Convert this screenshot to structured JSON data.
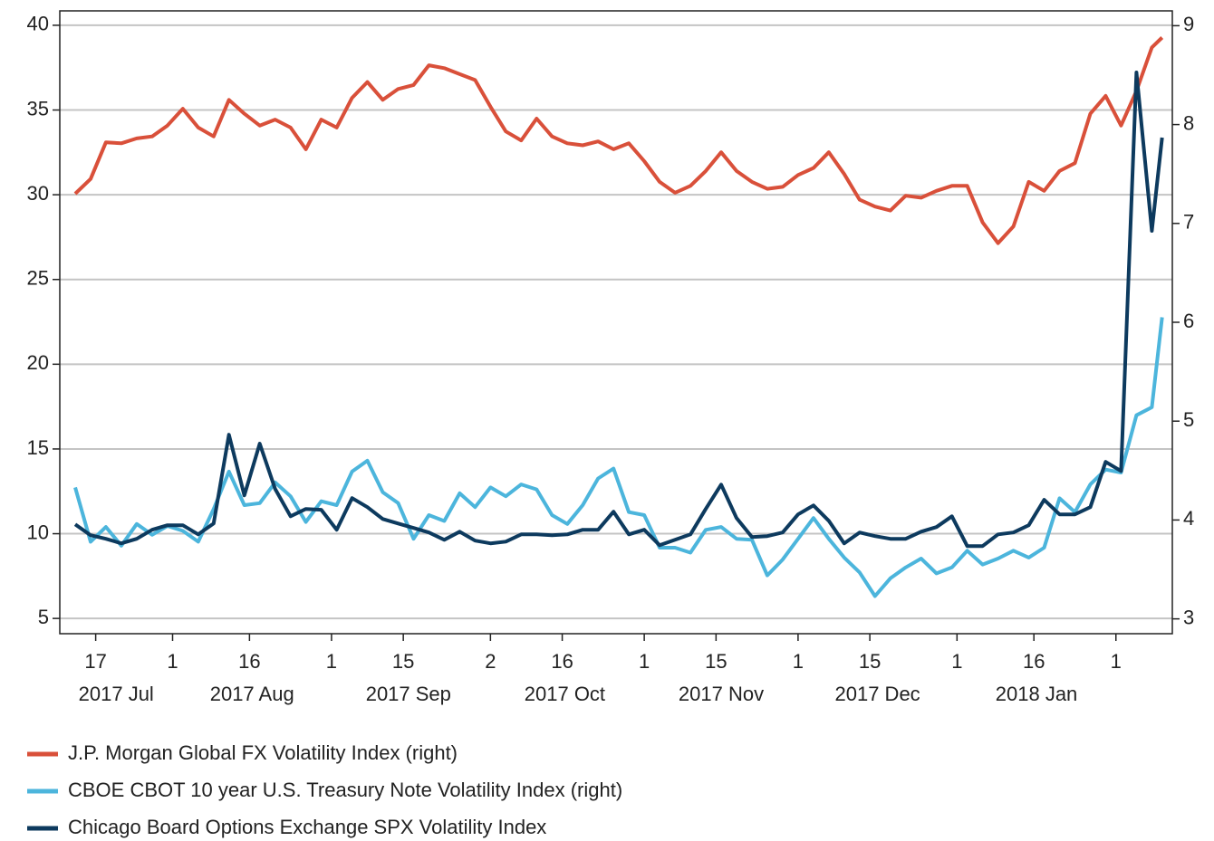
{
  "chart_data": {
    "type": "line",
    "x": [
      "2017-07-13",
      "2017-07-16",
      "2017-07-19",
      "2017-07-22",
      "2017-07-25",
      "2017-07-28",
      "2017-07-31",
      "2017-08-03",
      "2017-08-06",
      "2017-08-09",
      "2017-08-12",
      "2017-08-15",
      "2017-08-18",
      "2017-08-21",
      "2017-08-24",
      "2017-08-27",
      "2017-08-30",
      "2017-09-02",
      "2017-09-05",
      "2017-09-08",
      "2017-09-11",
      "2017-09-14",
      "2017-09-17",
      "2017-09-20",
      "2017-09-23",
      "2017-09-26",
      "2017-09-29",
      "2017-10-02",
      "2017-10-05",
      "2017-10-08",
      "2017-10-11",
      "2017-10-14",
      "2017-10-17",
      "2017-10-20",
      "2017-10-23",
      "2017-10-26",
      "2017-10-29",
      "2017-11-01",
      "2017-11-04",
      "2017-11-07",
      "2017-11-10",
      "2017-11-13",
      "2017-11-16",
      "2017-11-19",
      "2017-11-22",
      "2017-11-25",
      "2017-11-28",
      "2017-12-01",
      "2017-12-04",
      "2017-12-07",
      "2017-12-10",
      "2017-12-13",
      "2017-12-16",
      "2017-12-19",
      "2017-12-22",
      "2017-12-25",
      "2017-12-28",
      "2017-12-31",
      "2018-01-03",
      "2018-01-06",
      "2018-01-09",
      "2018-01-12",
      "2018-01-15",
      "2018-01-18",
      "2018-01-21",
      "2018-01-24",
      "2018-01-27",
      "2018-01-30",
      "2018-02-02",
      "2018-02-05",
      "2018-02-08",
      "2018-02-10"
    ],
    "series": [
      {
        "name": "J.P. Morgan Global FX Volatility Index (right)",
        "color": "#d9503a",
        "axis": "y2",
        "values": [
          7.3,
          7.45,
          7.82,
          7.81,
          7.86,
          7.88,
          7.99,
          8.16,
          7.97,
          7.88,
          8.25,
          8.11,
          7.99,
          8.05,
          7.97,
          7.75,
          8.05,
          7.97,
          8.27,
          8.43,
          8.25,
          8.36,
          8.4,
          8.6,
          8.57,
          8.51,
          8.45,
          8.18,
          7.93,
          7.84,
          8.06,
          7.88,
          7.81,
          7.79,
          7.83,
          7.75,
          7.81,
          7.63,
          7.42,
          7.31,
          7.38,
          7.53,
          7.72,
          7.53,
          7.42,
          7.35,
          7.37,
          7.49,
          7.56,
          7.72,
          7.5,
          7.24,
          7.17,
          7.13,
          7.28,
          7.26,
          7.33,
          7.38,
          7.38,
          7.01,
          6.8,
          6.97,
          7.42,
          7.33,
          7.53,
          7.61,
          8.11,
          8.29,
          7.99,
          8.34,
          8.78,
          8.88
        ]
      },
      {
        "name": "CBOE CBOT 10 year U.S. Treasury Note Volatility Index (right)",
        "color": "#4cb5dc",
        "axis": "y2",
        "values": [
          4.33,
          3.78,
          3.93,
          3.74,
          3.96,
          3.85,
          3.94,
          3.89,
          3.78,
          4.11,
          4.49,
          4.15,
          4.17,
          4.38,
          4.24,
          3.98,
          4.19,
          4.15,
          4.49,
          4.6,
          4.28,
          4.17,
          3.81,
          4.05,
          3.99,
          4.27,
          4.13,
          4.33,
          4.24,
          4.36,
          4.31,
          4.05,
          3.96,
          4.15,
          4.42,
          4.52,
          4.08,
          4.05,
          3.72,
          3.72,
          3.67,
          3.9,
          3.93,
          3.81,
          3.8,
          3.44,
          3.6,
          3.81,
          4.02,
          3.81,
          3.62,
          3.47,
          3.23,
          3.41,
          3.52,
          3.61,
          3.46,
          3.52,
          3.69,
          3.55,
          3.61,
          3.69,
          3.62,
          3.72,
          4.22,
          4.08,
          4.36,
          4.51,
          4.48,
          5.06,
          5.14,
          6.05
        ]
      },
      {
        "name": "Chicago Board Options Exchange SPX Volatility Index",
        "color": "#0d3a5e",
        "values": [
          10.55,
          9.91,
          9.7,
          9.43,
          9.7,
          10.23,
          10.5,
          10.5,
          9.96,
          10.6,
          15.84,
          12.26,
          15.31,
          12.64,
          11.03,
          11.46,
          11.41,
          10.23,
          12.1,
          11.57,
          10.87,
          10.6,
          10.34,
          10.07,
          9.64,
          10.12,
          9.59,
          9.43,
          9.53,
          9.96,
          9.96,
          9.91,
          9.96,
          10.23,
          10.23,
          11.3,
          9.96,
          10.23,
          9.32,
          9.64,
          9.96,
          11.46,
          12.9,
          10.92,
          9.8,
          9.86,
          10.07,
          11.14,
          11.67,
          10.76,
          9.43,
          10.07,
          9.86,
          9.7,
          9.7,
          10.12,
          10.39,
          11.03,
          9.27,
          9.27,
          9.96,
          10.07,
          10.5,
          12.0,
          11.14,
          11.14,
          11.57,
          14.24,
          13.7,
          37.22,
          27.87,
          33.37
        ]
      }
    ],
    "xlim": [
      "2017-07-10",
      "2018-02-12"
    ],
    "xticks": [
      {
        "value": "2017-07-17",
        "label": "17"
      },
      {
        "value": "2017-08-01",
        "label": "1"
      },
      {
        "value": "2017-08-16",
        "label": "16"
      },
      {
        "value": "2017-09-01",
        "label": "1"
      },
      {
        "value": "2017-09-15",
        "label": "15"
      },
      {
        "value": "2017-10-02",
        "label": "2"
      },
      {
        "value": "2017-10-16",
        "label": "16"
      },
      {
        "value": "2017-11-01",
        "label": "1"
      },
      {
        "value": "2017-11-15",
        "label": "15"
      },
      {
        "value": "2017-12-01",
        "label": "1"
      },
      {
        "value": "2017-12-15",
        "label": "15"
      },
      {
        "value": "2018-01-01",
        "label": "1"
      },
      {
        "value": "2018-01-16",
        "label": "16"
      },
      {
        "value": "2018-02-01",
        "label": "1"
      }
    ],
    "xtick_groups": [
      {
        "value": "2017-07",
        "label": "2017 Jul"
      },
      {
        "value": "2017-08",
        "label": "2017 Aug"
      },
      {
        "value": "2017-09",
        "label": "2017 Sep"
      },
      {
        "value": "2017-10",
        "label": "2017 Oct"
      },
      {
        "value": "2017-11",
        "label": "2017 Nov"
      },
      {
        "value": "2017-12",
        "label": "2017 Dec"
      },
      {
        "value": "2018-01",
        "label": "2018 Jan"
      }
    ],
    "ylim": [
      4.1,
      40.85
    ],
    "yticks": [
      5,
      10,
      15,
      20,
      25,
      30,
      35,
      40
    ],
    "y2lim": [
      2.85,
      9.15
    ],
    "y2ticks": [
      3,
      4,
      5,
      6,
      7,
      8,
      9
    ],
    "grid": true,
    "legend": "bottom"
  }
}
